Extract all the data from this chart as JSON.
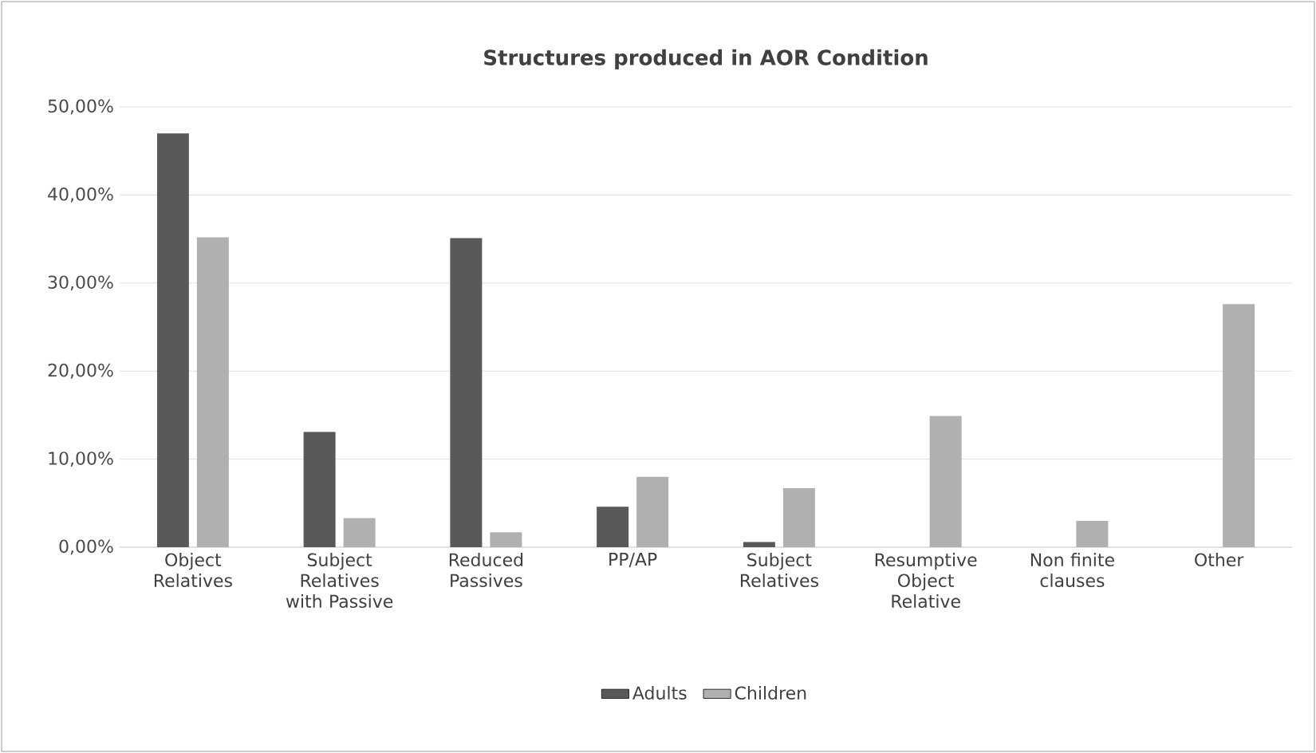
{
  "chart_data": {
    "type": "bar",
    "title": "Structures produced in AOR Condition",
    "categories": [
      "Object Relatives",
      "Subject Relatives with Passive",
      "Reduced Passives",
      "PP/AP",
      "Subject Relatives",
      "Resumptive Object Relative",
      "Non finite clauses",
      "Other"
    ],
    "series": [
      {
        "name": "Adults",
        "color": "#595959",
        "values": [
          47.0,
          13.1,
          35.1,
          4.6,
          0.6,
          0,
          0,
          0
        ]
      },
      {
        "name": "Children",
        "color": "#b0b0b0",
        "values": [
          35.2,
          3.3,
          1.7,
          8.0,
          6.7,
          14.9,
          3.0,
          27.6
        ]
      }
    ],
    "ylim": [
      0,
      50
    ],
    "yticks": [
      {
        "value": 0,
        "label": "0,00%"
      },
      {
        "value": 10,
        "label": "10,00%"
      },
      {
        "value": 20,
        "label": "20,00%"
      },
      {
        "value": 30,
        "label": "30,00%"
      },
      {
        "value": 40,
        "label": "40,00%"
      },
      {
        "value": 50,
        "label": "50,00%"
      }
    ],
    "grid": "y",
    "legend": "bottom"
  }
}
